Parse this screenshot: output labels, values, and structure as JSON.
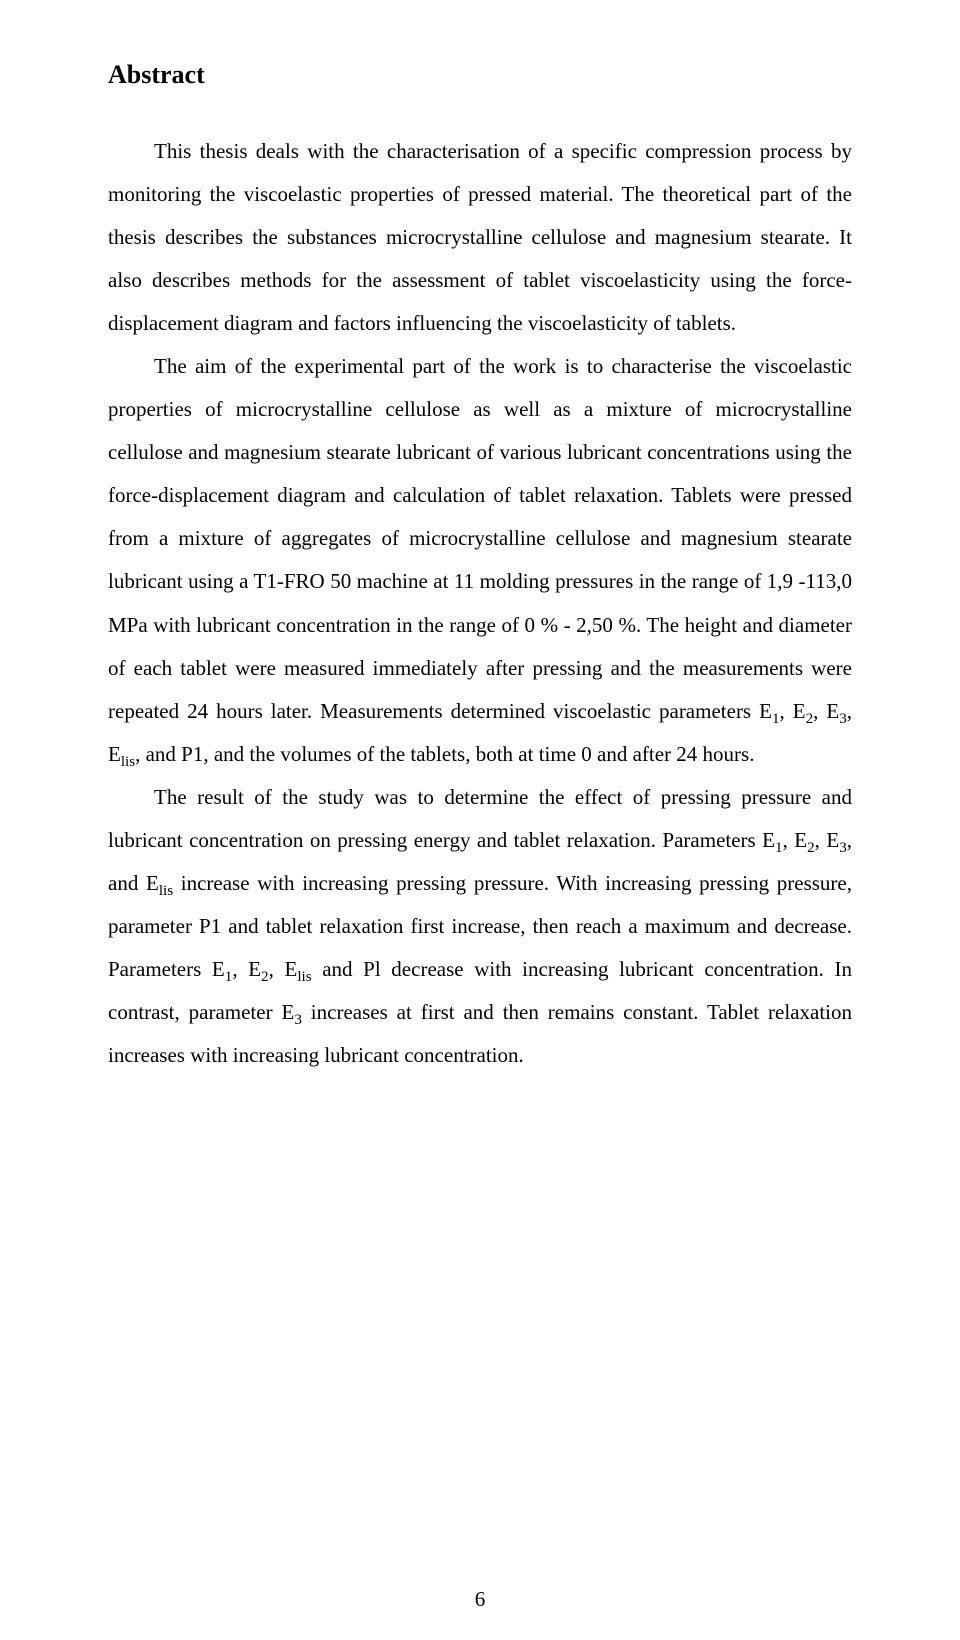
{
  "heading": "Abstract",
  "para1_part1": "This thesis deals with the characterisation of a specific compression process by monitoring the viscoelastic properties of pressed material. The theoretical part of the thesis describes the substances microcrystalline cellulose and magnesium stearate. It also describes methods for the assessment of tablet viscoelasticity using the force-displacement diagram and factors influencing the viscoelasticity of tablets.",
  "para2_part1": "The aim of the experimental part of the work is to characterise the viscoelastic properties of microcrystalline cellulose as well as a mixture of microcrystalline cellulose and magnesium stearate lubricant of various lubricant concentrations using the force-displacement diagram and calculation of tablet relaxation. Tablets were pressed from a mixture of aggregates of microcrystalline cellulose and magnesium stearate lubricant using a T1-FRO 50 machine at 11 molding pressures in the range of 1,9 -113,0 MPa with lubricant concentration in the range of 0 % - 2,50 %. The height and diameter of each tablet were measured immediately after pressing and the measurements were repeated 24 hours later. Measurements determined viscoelastic parameters E",
  "sub1": "1",
  "para2_part2": ", E",
  "sub2": "2",
  "para2_part3": ", E",
  "sub3": "3",
  "para2_part4": ", E",
  "sub4": "lis",
  "para2_part5": ", and P1, and the volumes of the tablets, both at time 0 and after 24 hours.",
  "para3_part1": "The result of the study was to determine the effect of pressing pressure and lubricant concentration on pressing energy and tablet relaxation. Parameters E",
  "sub5": "1",
  "para3_part2": ", E",
  "sub6": "2",
  "para3_part3": ", E",
  "sub7": "3",
  "para3_part4": ", and E",
  "sub8": "lis",
  "para3_part5": " increase with increasing pressing pressure. With increasing pressing pressure, parameter P1 and tablet relaxation first increase, then reach a maximum and decrease. Parameters E",
  "sub9": "1",
  "para3_part6": ", E",
  "sub10": "2",
  "para3_part7": ", E",
  "sub11": "lis",
  "para3_part8": " and Pl decrease with increasing lubricant concentration. In contrast, parameter E",
  "sub12": "3",
  "para3_part9": " increases at first and then remains constant. Tablet relaxation increases with increasing lubricant concentration.",
  "page_number": "6",
  "colors": {
    "text": "#000000",
    "background": "#ffffff"
  },
  "typography": {
    "heading_fontsize": 26,
    "body_fontsize": 21,
    "line_height": 2.05,
    "font_family": "Times New Roman"
  }
}
